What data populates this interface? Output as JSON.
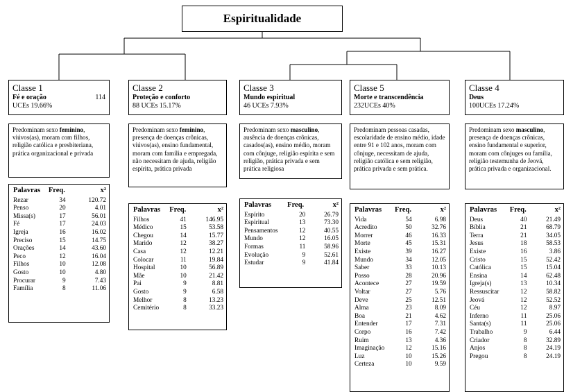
{
  "title": "Espiritualidade",
  "headers": {
    "words": "Palavras",
    "freq": "Freq.",
    "chi": "x²"
  },
  "classes": [
    {
      "label": "Classe 1",
      "subtitle": "Fé e oração",
      "count": "114",
      "uces": "UCEs 19.66%",
      "desc": [
        [
          "Predominam sexo ",
          "feminino",
          ", viúvos(as), moram com filhos, religião católica e presbiteriana, prática organizacional e privada"
        ]
      ],
      "words": [
        [
          "Rezar",
          "34",
          "120.72"
        ],
        [
          "Penso",
          "20",
          "4.01"
        ],
        [
          "Missa(s)",
          "17",
          "56.01"
        ],
        [
          "Fé",
          "17",
          "24.03"
        ],
        [
          "Igreja",
          "16",
          "16.02"
        ],
        [
          "Preciso",
          "15",
          "14.75"
        ],
        [
          "Orações",
          "14",
          "43.60"
        ],
        [
          "Peco",
          "12",
          "16.04"
        ],
        [
          "Filhos",
          "10",
          "12.08"
        ],
        [
          "Gosto",
          "10",
          "4.80"
        ],
        [
          "Procurar",
          "9",
          "7.43"
        ],
        [
          "Família",
          "8",
          "11.06"
        ]
      ]
    },
    {
      "label": "Classe 2",
      "subtitle": "Proteção e conforto",
      "count": "",
      "uces": "88 UCEs 15.17%",
      "desc": [
        [
          "Predominam sexo ",
          "feminino",
          ", presença de doenças crônicas, viúvos(as), ensino fundamental, moram com família e empregada, não necessitam de ajuda, religião espírita, prática privada"
        ]
      ],
      "words": [
        [
          "Filhos",
          "41",
          "146.95"
        ],
        [
          "Médico",
          "15",
          "53.58"
        ],
        [
          "Chegou",
          "14",
          "15.77"
        ],
        [
          "Marido",
          "12",
          "38.27"
        ],
        [
          "Casa",
          "12",
          "12.21"
        ],
        [
          "Colocar",
          "11",
          "19.84"
        ],
        [
          "Hospital",
          "10",
          "56.89"
        ],
        [
          "Mãe",
          "10",
          "21.42"
        ],
        [
          "Pai",
          "9",
          "8.81"
        ],
        [
          "Gosto",
          "9",
          "6.58"
        ],
        [
          "Melhor",
          "8",
          "13.23"
        ],
        [
          "Cemitério",
          "8",
          "33.23"
        ]
      ]
    },
    {
      "label": "Classe 3",
      "subtitle": "Mundo espiritual",
      "count": "",
      "uces": "46 UCEs 7.93%",
      "desc": [
        [
          "Predominam sexo ",
          "masculino",
          ", ausência de doenças crônicas, casados(as), ensino médio, moram com cônjuge, religião espírita e sem religião, prática privada e sem prática religiosa"
        ]
      ],
      "words": [
        [
          "Espírito",
          "20",
          "26.79"
        ],
        [
          "Espiritual",
          "13",
          "73.30"
        ],
        [
          "Pensamentos",
          "12",
          "40.55"
        ],
        [
          "Mundo",
          "12",
          "16.05"
        ],
        [
          "Formas",
          "11",
          "58.96"
        ],
        [
          "Evolução",
          "9",
          "52.61"
        ],
        [
          "Estudar",
          "9",
          "41.84"
        ]
      ]
    },
    {
      "label": "Classe 5",
      "subtitle": "Morte e transcendência",
      "count": "",
      "uces": "232UCEs 40%",
      "desc": [
        [
          "Predominam pessoas casadas, escolaridade de ensino médio, idade entre 91 e 102 anos, moram com cônjuge, necessitam de ajuda, religião católica e sem religião, prática privada e sem prática.",
          "",
          ""
        ]
      ],
      "words": [
        [
          "Vida",
          "54",
          "6.98"
        ],
        [
          "Acredito",
          "50",
          "32.76"
        ],
        [
          "Morrer",
          "46",
          "16.33"
        ],
        [
          "Morte",
          "45",
          "15.31"
        ],
        [
          "Existe",
          "39",
          "16.27"
        ],
        [
          "Mundo",
          "34",
          "12.05"
        ],
        [
          "Saber",
          "33",
          "10.13"
        ],
        [
          "Posso",
          "28",
          "20.96"
        ],
        [
          "Acontece",
          "27",
          "19.59"
        ],
        [
          "Voltar",
          "27",
          "5.76"
        ],
        [
          "Deve",
          "25",
          "12.51"
        ],
        [
          "Alma",
          "23",
          "8.09"
        ],
        [
          "Boa",
          "21",
          "4.62"
        ],
        [
          "Entender",
          "17",
          "7.31"
        ],
        [
          "Corpo",
          "16",
          "7.42"
        ],
        [
          "Ruim",
          "13",
          "4.36"
        ],
        [
          "Imaginação",
          "12",
          "15.16"
        ],
        [
          "Luz",
          "10",
          "15.26"
        ],
        [
          "Certeza",
          "10",
          "9.59"
        ]
      ]
    },
    {
      "label": "Classe 4",
      "subtitle": "Deus",
      "count": "",
      "uces": "100UCEs 17.24%",
      "desc": [
        [
          "Predominam sexo ",
          "masculino",
          ", presença de doenças crônicas, ensino fundamental e superior, moram com cônjuges ou família, religião testemunha de Jeová, prática privada e organizacional."
        ]
      ],
      "words": [
        [
          "Deus",
          "40",
          "21.49"
        ],
        [
          "Bíblia",
          "21",
          "68.79"
        ],
        [
          "Terra",
          "21",
          "34.05"
        ],
        [
          "Jesus",
          "18",
          "58.53"
        ],
        [
          "Existe",
          "16",
          "3.86"
        ],
        [
          "Cristo",
          "15",
          "52.42"
        ],
        [
          "Católica",
          "15",
          "15.04"
        ],
        [
          "Ensina",
          "14",
          "62.48"
        ],
        [
          "Igreja(s)",
          "13",
          "10.34"
        ],
        [
          "Ressuscitar",
          "12",
          "58.82"
        ],
        [
          "Jeová",
          "12",
          "52.52"
        ],
        [
          "Céu",
          "12",
          "8.97"
        ],
        [
          "Inferno",
          "11",
          "25.06"
        ],
        [
          "Santa(s)",
          "11",
          "25.06"
        ],
        [
          "Trabalho",
          "9",
          "6.44"
        ],
        [
          "Criador",
          "8",
          "32.89"
        ],
        [
          "Anjos",
          "8",
          "24.19"
        ],
        [
          "Pregou",
          "8",
          "24.19"
        ]
      ]
    }
  ]
}
